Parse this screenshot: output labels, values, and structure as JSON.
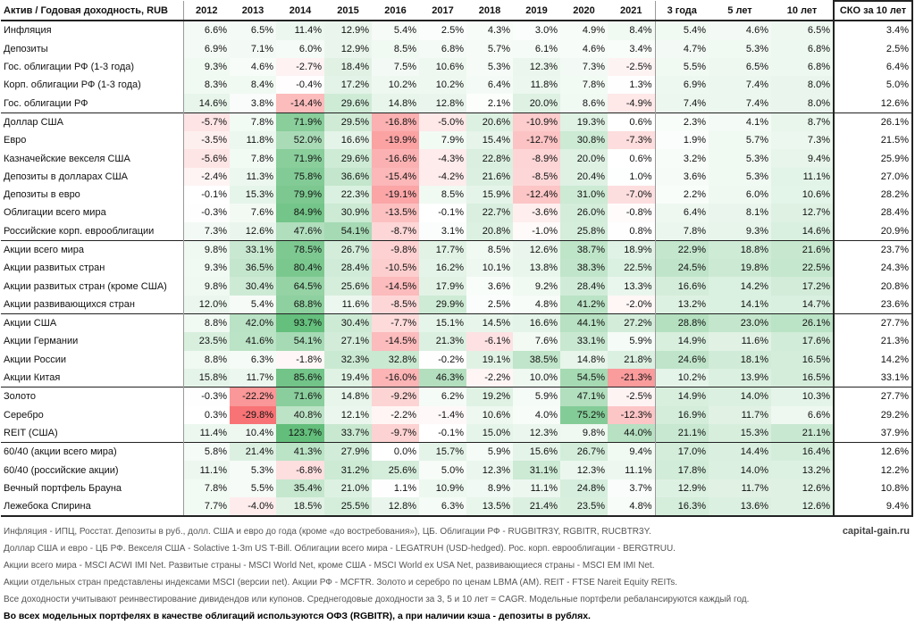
{
  "header": {
    "title": "Актив / Годовая доходность, RUB",
    "years": [
      "2012",
      "2013",
      "2014",
      "2015",
      "2016",
      "2017",
      "2018",
      "2019",
      "2020",
      "2021"
    ],
    "cagr": [
      "3 года",
      "5 лет",
      "10 лет"
    ],
    "sko": "СКО за 10 лет"
  },
  "groups": [
    [
      {
        "name": "Инфляция",
        "y": [
          "6.6%",
          "6.5%",
          "11.4%",
          "12.9%",
          "5.4%",
          "2.5%",
          "4.3%",
          "3.0%",
          "4.9%",
          "8.4%"
        ],
        "c": [
          "5.4%",
          "4.6%",
          "6.5%"
        ],
        "sko": "3.4%"
      },
      {
        "name": "Депозиты",
        "y": [
          "6.9%",
          "7.1%",
          "6.0%",
          "12.9%",
          "8.5%",
          "6.8%",
          "5.7%",
          "6.1%",
          "4.6%",
          "3.4%"
        ],
        "c": [
          "4.7%",
          "5.3%",
          "6.8%"
        ],
        "sko": "2.5%"
      },
      {
        "name": "Гос. облигации РФ (1-3 года)",
        "y": [
          "9.3%",
          "4.6%",
          "-2.7%",
          "18.4%",
          "7.5%",
          "10.6%",
          "5.3%",
          "12.3%",
          "7.3%",
          "-2.5%"
        ],
        "c": [
          "5.5%",
          "6.5%",
          "6.8%"
        ],
        "sko": "6.4%"
      },
      {
        "name": "Корп. облигации РФ (1-3 года)",
        "y": [
          "8.3%",
          "8.4%",
          "-0.4%",
          "17.2%",
          "10.2%",
          "10.2%",
          "6.4%",
          "11.8%",
          "7.8%",
          "1.3%"
        ],
        "c": [
          "6.9%",
          "7.4%",
          "8.0%"
        ],
        "sko": "5.0%"
      },
      {
        "name": "Гос. облигации РФ",
        "y": [
          "14.6%",
          "3.8%",
          "-14.4%",
          "29.6%",
          "14.8%",
          "12.8%",
          "2.1%",
          "20.0%",
          "8.6%",
          "-4.9%"
        ],
        "c": [
          "7.4%",
          "7.4%",
          "8.0%"
        ],
        "sko": "12.6%"
      }
    ],
    [
      {
        "name": "Доллар США",
        "y": [
          "-5.7%",
          "7.8%",
          "71.9%",
          "29.5%",
          "-16.8%",
          "-5.0%",
          "20.6%",
          "-10.9%",
          "19.3%",
          "0.6%"
        ],
        "c": [
          "2.3%",
          "4.1%",
          "8.7%"
        ],
        "sko": "26.1%"
      },
      {
        "name": "Евро",
        "y": [
          "-3.5%",
          "11.8%",
          "52.0%",
          "16.6%",
          "-19.9%",
          "7.9%",
          "15.4%",
          "-12.7%",
          "30.8%",
          "-7.3%"
        ],
        "c": [
          "1.9%",
          "5.7%",
          "7.3%"
        ],
        "sko": "21.5%"
      },
      {
        "name": "Казначейские векселя США",
        "y": [
          "-5.6%",
          "7.8%",
          "71.9%",
          "29.6%",
          "-16.6%",
          "-4.3%",
          "22.8%",
          "-8.9%",
          "20.0%",
          "0.6%"
        ],
        "c": [
          "3.2%",
          "5.3%",
          "9.4%"
        ],
        "sko": "25.9%"
      },
      {
        "name": "Депозиты в долларах США",
        "y": [
          "-2.4%",
          "11.3%",
          "75.8%",
          "36.6%",
          "-15.4%",
          "-4.2%",
          "21.6%",
          "-8.5%",
          "20.4%",
          "1.0%"
        ],
        "c": [
          "3.6%",
          "5.3%",
          "11.1%"
        ],
        "sko": "27.0%"
      },
      {
        "name": "Депозиты в евро",
        "y": [
          "-0.1%",
          "15.3%",
          "79.9%",
          "22.3%",
          "-19.1%",
          "8.5%",
          "15.9%",
          "-12.4%",
          "31.0%",
          "-7.0%"
        ],
        "c": [
          "2.2%",
          "6.0%",
          "10.6%"
        ],
        "sko": "28.2%"
      },
      {
        "name": "Облигации всего мира",
        "y": [
          "-0.3%",
          "7.6%",
          "84.9%",
          "30.9%",
          "-13.5%",
          "-0.1%",
          "22.7%",
          "-3.6%",
          "26.0%",
          "-0.8%"
        ],
        "c": [
          "6.4%",
          "8.1%",
          "12.7%"
        ],
        "sko": "28.4%"
      },
      {
        "name": "Российские корп. еврооблигации",
        "y": [
          "7.3%",
          "12.6%",
          "47.6%",
          "54.1%",
          "-8.7%",
          "3.1%",
          "20.8%",
          "-1.0%",
          "25.8%",
          "0.8%"
        ],
        "c": [
          "7.8%",
          "9.3%",
          "14.6%"
        ],
        "sko": "20.9%"
      }
    ],
    [
      {
        "name": "Акции всего мира",
        "y": [
          "9.8%",
          "33.1%",
          "78.5%",
          "26.7%",
          "-9.8%",
          "17.7%",
          "8.5%",
          "12.6%",
          "38.7%",
          "18.9%"
        ],
        "c": [
          "22.9%",
          "18.8%",
          "21.6%"
        ],
        "sko": "23.7%"
      },
      {
        "name": "Акции развитых стран",
        "y": [
          "9.3%",
          "36.5%",
          "80.4%",
          "28.4%",
          "-10.5%",
          "16.2%",
          "10.1%",
          "13.8%",
          "38.3%",
          "22.5%"
        ],
        "c": [
          "24.5%",
          "19.8%",
          "22.5%"
        ],
        "sko": "24.3%"
      },
      {
        "name": "Акции развитых стран (кроме США)",
        "y": [
          "9.8%",
          "30.4%",
          "64.5%",
          "25.6%",
          "-14.5%",
          "17.9%",
          "3.6%",
          "9.2%",
          "28.4%",
          "13.3%"
        ],
        "c": [
          "16.6%",
          "14.2%",
          "17.2%"
        ],
        "sko": "20.8%"
      },
      {
        "name": "Акции развивающихся стран",
        "y": [
          "12.0%",
          "5.4%",
          "68.8%",
          "11.6%",
          "-8.5%",
          "29.9%",
          "2.5%",
          "4.8%",
          "41.2%",
          "-2.0%"
        ],
        "c": [
          "13.2%",
          "14.1%",
          "14.7%"
        ],
        "sko": "23.6%"
      }
    ],
    [
      {
        "name": "Акции США",
        "y": [
          "8.8%",
          "42.0%",
          "93.7%",
          "30.4%",
          "-7.7%",
          "15.1%",
          "14.5%",
          "16.6%",
          "44.1%",
          "27.2%"
        ],
        "c": [
          "28.8%",
          "23.0%",
          "26.1%"
        ],
        "sko": "27.7%"
      },
      {
        "name": "Акции Германии",
        "y": [
          "23.5%",
          "41.6%",
          "54.1%",
          "27.1%",
          "-14.5%",
          "21.3%",
          "-6.1%",
          "7.6%",
          "33.1%",
          "5.9%"
        ],
        "c": [
          "14.9%",
          "11.6%",
          "17.6%"
        ],
        "sko": "21.3%"
      },
      {
        "name": "Акции России",
        "y": [
          "8.8%",
          "6.3%",
          "-1.8%",
          "32.3%",
          "32.8%",
          "-0.2%",
          "19.1%",
          "38.5%",
          "14.8%",
          "21.8%"
        ],
        "c": [
          "24.6%",
          "18.1%",
          "16.5%"
        ],
        "sko": "14.2%"
      },
      {
        "name": "Акции Китая",
        "y": [
          "15.8%",
          "11.7%",
          "85.6%",
          "19.4%",
          "-16.0%",
          "46.3%",
          "-2.2%",
          "10.0%",
          "54.5%",
          "-21.3%"
        ],
        "c": [
          "10.2%",
          "13.9%",
          "16.5%"
        ],
        "sko": "33.1%"
      }
    ],
    [
      {
        "name": "Золото",
        "y": [
          "-0.3%",
          "-22.2%",
          "71.6%",
          "14.8%",
          "-9.2%",
          "6.2%",
          "19.2%",
          "5.9%",
          "47.1%",
          "-2.5%"
        ],
        "c": [
          "14.9%",
          "14.0%",
          "10.3%"
        ],
        "sko": "27.7%"
      },
      {
        "name": "Серебро",
        "y": [
          "0.3%",
          "-29.8%",
          "40.8%",
          "12.1%",
          "-2.2%",
          "-1.4%",
          "10.6%",
          "4.0%",
          "75.2%",
          "-12.3%"
        ],
        "c": [
          "16.9%",
          "11.7%",
          "6.6%"
        ],
        "sko": "29.2%"
      },
      {
        "name": "REIT (США)",
        "y": [
          "11.4%",
          "10.4%",
          "123.7%",
          "33.7%",
          "-9.7%",
          "-0.1%",
          "15.0%",
          "12.3%",
          "9.8%",
          "44.0%"
        ],
        "c": [
          "21.1%",
          "15.3%",
          "21.1%"
        ],
        "sko": "37.9%"
      }
    ],
    [
      {
        "name": "60/40 (акции всего мира)",
        "y": [
          "5.8%",
          "21.4%",
          "41.3%",
          "27.9%",
          "0.0%",
          "15.7%",
          "5.9%",
          "15.6%",
          "26.7%",
          "9.4%"
        ],
        "c": [
          "17.0%",
          "14.4%",
          "16.4%"
        ],
        "sko": "12.6%"
      },
      {
        "name": "60/40 (российские акции)",
        "y": [
          "11.1%",
          "5.3%",
          "-6.8%",
          "31.2%",
          "25.6%",
          "5.0%",
          "12.3%",
          "31.1%",
          "12.3%",
          "11.1%"
        ],
        "c": [
          "17.8%",
          "14.0%",
          "13.2%"
        ],
        "sko": "12.2%"
      },
      {
        "name": "Вечный портфель Брауна",
        "y": [
          "7.8%",
          "5.5%",
          "35.4%",
          "21.0%",
          "1.1%",
          "10.9%",
          "8.9%",
          "11.1%",
          "24.8%",
          "3.7%"
        ],
        "c": [
          "12.9%",
          "11.7%",
          "12.6%"
        ],
        "sko": "10.8%"
      },
      {
        "name": "Лежебока Спирина",
        "y": [
          "7.7%",
          "-4.0%",
          "18.5%",
          "25.5%",
          "12.8%",
          "6.3%",
          "13.5%",
          "21.4%",
          "23.5%",
          "4.8%"
        ],
        "c": [
          "16.3%",
          "13.6%",
          "12.6%"
        ],
        "sko": "9.4%"
      }
    ]
  ],
  "notes": [
    "Инфляция - ИПЦ, Росстат. Депозиты в руб., долл. США и евро до года (кроме «до востребования»), ЦБ. Облигации РФ - RUGBITR3Y, RGBITR, RUCBTR3Y.",
    "Доллар США и евро - ЦБ РФ. Векселя США - Solactive 1-3m US T-Bill. Облигации всего мира - LEGATRUH (USD-hedged). Рос. корп. еврооблигации - BERGTRUU.",
    "Акции всего мира - MSCI ACWI IMI Net. Развитые страны - MSCI World Net, кроме США - MSCI World ex USA Net, развивающиеся страны - MSCI EM IMI Net.",
    "Акции отдельных стран представлены индексами MSCI (версии net). Акции РФ - MCFTR. Золото и серебро по ценам LBMA (AM). REIT - FTSE Nareit Equity REITs.",
    "Все доходности учитывают реинвестирование дивидендов или купонов. Среднегодовые доходности за 3, 5 и 10 лет = CAGR. Модельные портфели ребалансируются каждый год."
  ],
  "note_bold": "Во всех модельных портфелях в качестве облигаций используются ОФЗ (RGBITR), а при наличии кэша - депозиты в рублях.",
  "site": "capital-gain.ru",
  "colors": {
    "positive": "#63be7b",
    "negative": "#f8696b",
    "white": "#ffffff",
    "sko_low": "#ffeb84",
    "sko_high": "#f8696b"
  }
}
